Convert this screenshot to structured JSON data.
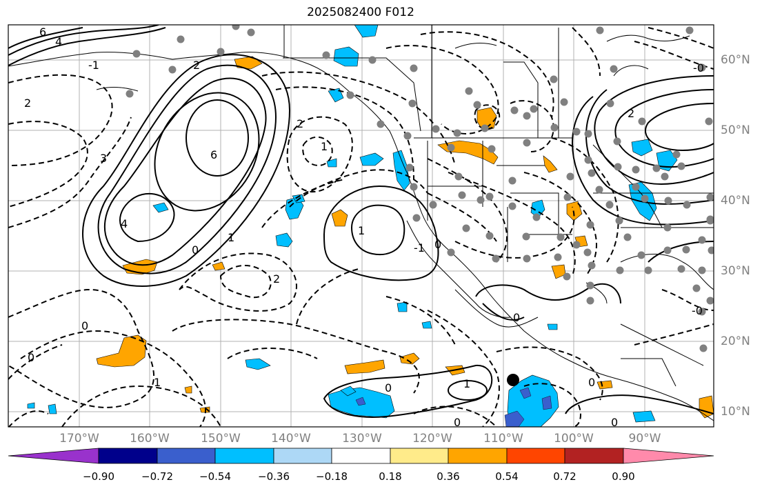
{
  "title": "2025082400 F012",
  "lat_labels": [
    "60°N",
    "50°N",
    "40°N",
    "30°N",
    "20°N",
    "10°N"
  ],
  "lon_labels": [
    "170°W",
    "160°W",
    "150°W",
    "140°W",
    "130°W",
    "120°W",
    "110°W",
    "100°W",
    "90°W"
  ],
  "colorbar": {
    "ticks": [
      "−0.90",
      "−0.72",
      "−0.54",
      "−0.36",
      "−0.18",
      "0.18",
      "0.36",
      "0.54",
      "0.72",
      "0.90"
    ],
    "colors": [
      "#9932cc",
      "#00008b",
      "#3a5fcd",
      "#00bfff",
      "#add8f6",
      "#ffffff",
      "#ffeb8a",
      "#ffa500",
      "#ff4500",
      "#b22222",
      "#ff8aab"
    ]
  },
  "contour_labels": [
    "6",
    "4",
    "2",
    "0",
    "1",
    "2",
    "6",
    "4",
    "3",
    "2",
    "-0",
    "2",
    "-0",
    "1",
    "0",
    "0",
    "2",
    "1",
    "0",
    "-1",
    "-1",
    "0",
    "0",
    "0",
    "1",
    "0",
    "0",
    "1"
  ],
  "colors": {
    "warm_fill": "#ffa500",
    "cold_fill": "#00bfff",
    "deep_cold": "#3a5fcd",
    "station": "#808080",
    "grid": "#b0b0b0"
  }
}
